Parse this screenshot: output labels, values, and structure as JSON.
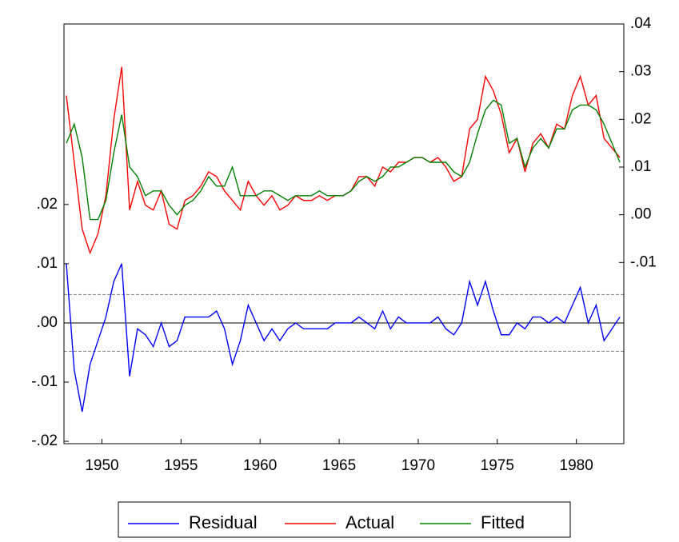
{
  "chart_data": {
    "type": "line",
    "x": [
      1947.75,
      1948.25,
      1948.75,
      1949.25,
      1949.75,
      1950.25,
      1950.75,
      1951.25,
      1951.75,
      1952.25,
      1952.75,
      1953.25,
      1953.75,
      1954.25,
      1954.75,
      1955.25,
      1955.75,
      1956.25,
      1956.75,
      1957.25,
      1957.75,
      1958.25,
      1958.75,
      1959.25,
      1959.75,
      1960.25,
      1960.75,
      1961.25,
      1961.75,
      1962.25,
      1962.75,
      1963.25,
      1963.75,
      1964.25,
      1964.75,
      1965.25,
      1965.75,
      1966.25,
      1966.75,
      1967.25,
      1967.75,
      1968.25,
      1968.75,
      1969.25,
      1969.75,
      1970.25,
      1970.75,
      1971.25,
      1971.75,
      1972.25,
      1972.75,
      1973.25,
      1973.75,
      1974.25,
      1974.75,
      1975.25,
      1975.75,
      1976.25,
      1976.75,
      1977.25,
      1977.75,
      1978.25,
      1978.75,
      1979.25,
      1979.75,
      1980.25,
      1980.75,
      1981.25,
      1981.75,
      1982.25,
      1982.75
    ],
    "series": [
      {
        "name": "Residual",
        "color": "#0000ff",
        "axis": "y",
        "values": [
          0.01,
          -0.008,
          -0.015,
          -0.007,
          -0.003,
          0.001,
          0.007,
          0.01,
          -0.009,
          -0.001,
          -0.002,
          -0.004,
          0,
          -0.004,
          -0.003,
          0.001,
          0.001,
          0.001,
          0.001,
          0.002,
          -0.001,
          -0.007,
          -0.003,
          0.003,
          0,
          -0.003,
          -0.001,
          -0.003,
          -0.001,
          0,
          -0.001,
          -0.001,
          -0.001,
          -0.001,
          0,
          0,
          0,
          0.001,
          0,
          -0.001,
          0.002,
          -0.001,
          0.001,
          0,
          0,
          0,
          0,
          0.001,
          -0.001,
          -0.002,
          0,
          0.007,
          0.003,
          0.007,
          0.002,
          -0.002,
          -0.002,
          0,
          -0.001,
          0.001,
          0.001,
          0,
          0.001,
          0,
          0.003,
          0.006,
          0,
          0.003,
          -0.003,
          -0.001,
          0.001
        ]
      },
      {
        "name": "Actual",
        "color": "#ff0000",
        "axis": "y2",
        "values": [
          0.025,
          0.011,
          -0.003,
          -0.008,
          -0.004,
          0.004,
          0.02,
          0.031,
          0.001,
          0.007,
          0.002,
          0.001,
          0.005,
          -0.002,
          -0.003,
          0.003,
          0.004,
          0.006,
          0.009,
          0.008,
          0.005,
          0.003,
          0.001,
          0.007,
          0.004,
          0.002,
          0.004,
          0.001,
          0.002,
          0.004,
          0.003,
          0.003,
          0.004,
          0.003,
          0.004,
          0.004,
          0.005,
          0.008,
          0.008,
          0.006,
          0.01,
          0.009,
          0.011,
          0.011,
          0.012,
          0.012,
          0.011,
          0.012,
          0.01,
          0.007,
          0.008,
          0.018,
          0.02,
          0.029,
          0.026,
          0.021,
          0.013,
          0.016,
          0.009,
          0.015,
          0.017,
          0.014,
          0.019,
          0.018,
          0.025,
          0.029,
          0.023,
          0.025,
          0.016,
          0.014,
          0.012
        ]
      },
      {
        "name": "Fitted",
        "color": "#008000",
        "axis": "y2",
        "values": [
          0.015,
          0.019,
          0.012,
          -0.001,
          -0.001,
          0.003,
          0.013,
          0.021,
          0.01,
          0.008,
          0.004,
          0.005,
          0.005,
          0.002,
          0,
          0.002,
          0.003,
          0.005,
          0.008,
          0.006,
          0.006,
          0.01,
          0.004,
          0.004,
          0.004,
          0.005,
          0.005,
          0.004,
          0.003,
          0.004,
          0.004,
          0.004,
          0.005,
          0.004,
          0.004,
          0.004,
          0.005,
          0.007,
          0.008,
          0.007,
          0.008,
          0.01,
          0.01,
          0.011,
          0.012,
          0.012,
          0.011,
          0.011,
          0.011,
          0.009,
          0.008,
          0.011,
          0.017,
          0.022,
          0.024,
          0.023,
          0.015,
          0.016,
          0.01,
          0.014,
          0.016,
          0.014,
          0.018,
          0.018,
          0.022,
          0.023,
          0.023,
          0.022,
          0.019,
          0.015,
          0.011
        ]
      }
    ],
    "std_error_band": [
      0.0048,
      -0.0048
    ],
    "xlim": [
      1947.6,
      1983.0
    ],
    "xticks": [
      1950,
      1955,
      1960,
      1965,
      1970,
      1975,
      1980
    ],
    "ylim": [
      -0.0204,
      0.0505
    ],
    "yticks": [
      {
        "value": 0.02,
        "label": ".02"
      },
      {
        "value": 0.01,
        "label": ".01"
      },
      {
        "value": 0,
        "label": ".00"
      },
      {
        "value": -0.01,
        "label": "-.01"
      },
      {
        "value": -0.02,
        "label": "-.02"
      }
    ],
    "y2lim": [
      -0.048,
      0.04
    ],
    "y2ticks": [
      {
        "value": 0.04,
        "label": ".04"
      },
      {
        "value": 0.03,
        "label": ".03"
      },
      {
        "value": 0.02,
        "label": ".02"
      },
      {
        "value": 0.01,
        "label": ".01"
      },
      {
        "value": 0,
        "label": ".00"
      },
      {
        "value": -0.01,
        "label": "-.01"
      }
    ],
    "legend": "bottom"
  }
}
